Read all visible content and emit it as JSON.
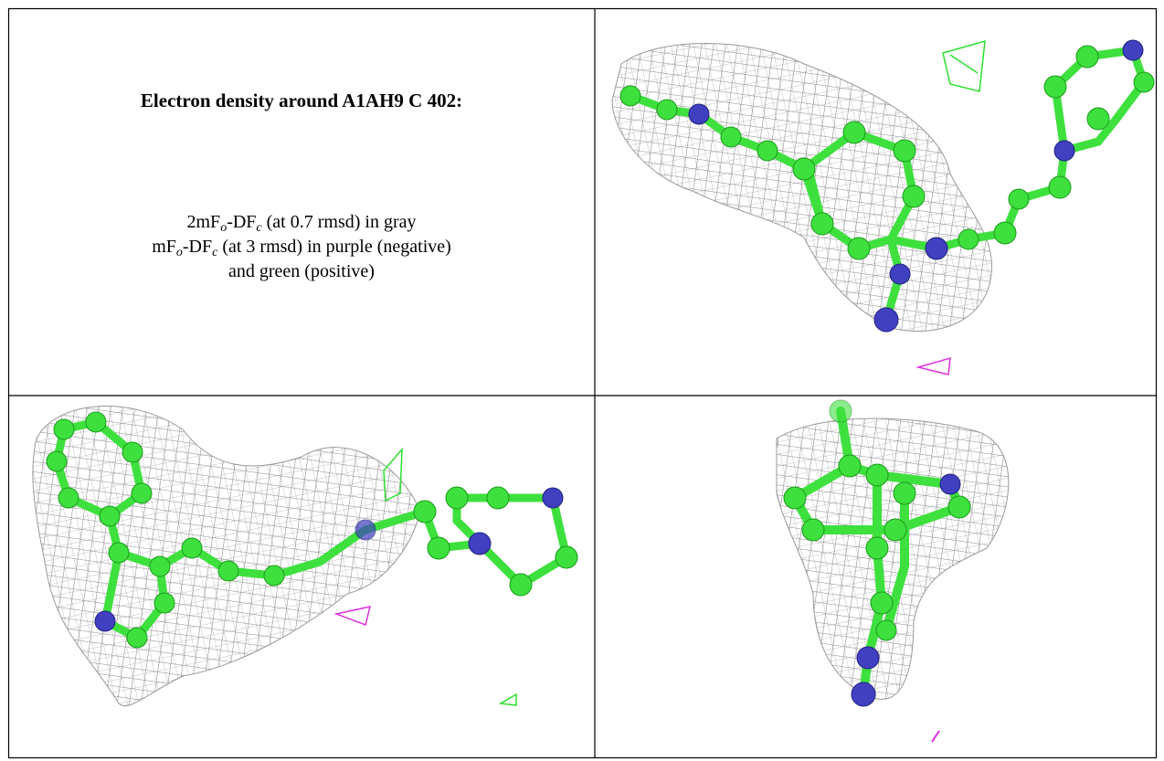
{
  "title": "Electron density around A1AH9 C 402:",
  "caption": {
    "line1": [
      "2mF",
      "o",
      "-DF",
      "c",
      " (at 0.7 rmsd) in gray"
    ],
    "line2": [
      "mF",
      "o",
      "-DF",
      "c",
      " (at 3 rmsd) in purple (negative)"
    ],
    "line3": "and green (positive)"
  }
}
